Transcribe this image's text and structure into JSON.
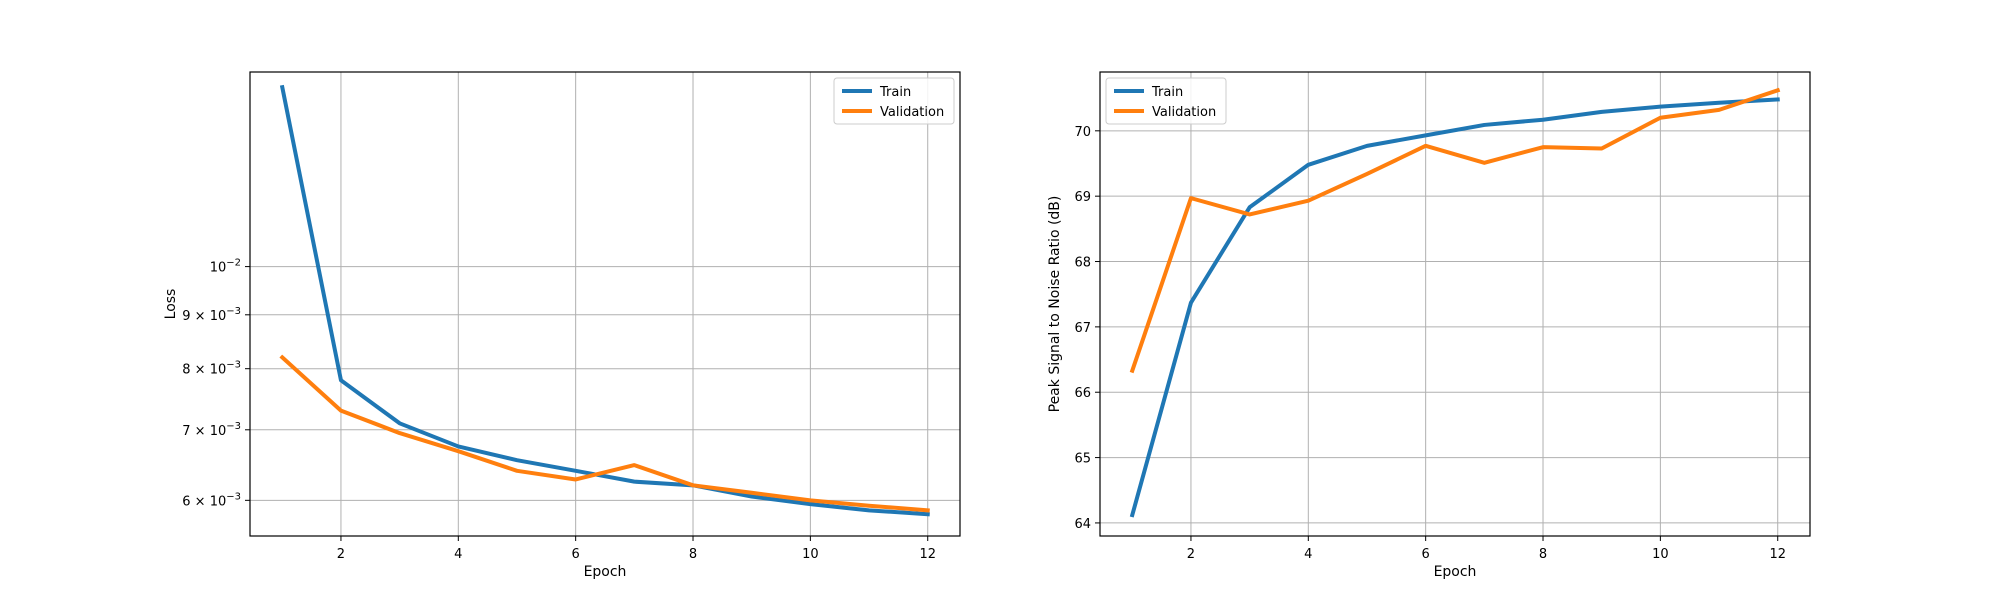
{
  "chart_data": [
    {
      "type": "line",
      "xlabel": "Epoch",
      "ylabel": "Loss",
      "yscale": "log",
      "xlim": [
        0.45,
        12.55
      ],
      "ylim": [
        0.00555,
        0.0153
      ],
      "xticks": [
        2,
        4,
        6,
        8,
        10,
        12
      ],
      "xtick_labels": [
        "2",
        "4",
        "6",
        "8",
        "10",
        "12"
      ],
      "yticks": [
        {
          "value": 0.01,
          "mantissa": "",
          "base": "10",
          "exponent": "−2"
        },
        {
          "value": 0.009,
          "mantissa": "9 × ",
          "base": "10",
          "exponent": "−3"
        },
        {
          "value": 0.008,
          "mantissa": "8 × ",
          "base": "10",
          "exponent": "−3"
        },
        {
          "value": 0.007,
          "mantissa": "7 × ",
          "base": "10",
          "exponent": "−3"
        },
        {
          "value": 0.006,
          "mantissa": "6 × ",
          "base": "10",
          "exponent": "−3"
        }
      ],
      "grid": true,
      "legend": "top-right",
      "x": [
        1,
        2,
        3,
        4,
        5,
        6,
        7,
        8,
        9,
        10,
        11,
        12
      ],
      "series": [
        {
          "name": "Train",
          "color": "#1f77b4",
          "values": [
            0.0148,
            0.0078,
            0.0071,
            0.00675,
            0.00655,
            0.0064,
            0.00625,
            0.0062,
            0.00605,
            0.00595,
            0.00587,
            0.00582
          ]
        },
        {
          "name": "Validation",
          "color": "#ff7f0e",
          "values": [
            0.0082,
            0.0073,
            0.00695,
            0.00668,
            0.0064,
            0.00628,
            0.00648,
            0.0062,
            0.0061,
            0.006,
            0.00593,
            0.00587
          ]
        }
      ]
    },
    {
      "type": "line",
      "xlabel": "Epoch",
      "ylabel": "Peak Signal to Noise Ratio (dB)",
      "yscale": "linear",
      "xlim": [
        0.45,
        12.55
      ],
      "ylim": [
        63.8,
        70.9
      ],
      "xticks": [
        2,
        4,
        6,
        8,
        10,
        12
      ],
      "xtick_labels": [
        "2",
        "4",
        "6",
        "8",
        "10",
        "12"
      ],
      "yticks": [
        {
          "value": 64,
          "label": "64"
        },
        {
          "value": 65,
          "label": "65"
        },
        {
          "value": 66,
          "label": "66"
        },
        {
          "value": 67,
          "label": "67"
        },
        {
          "value": 68,
          "label": "68"
        },
        {
          "value": 69,
          "label": "69"
        },
        {
          "value": 70,
          "label": "70"
        }
      ],
      "grid": true,
      "legend": "top-left",
      "x": [
        1,
        2,
        3,
        4,
        5,
        6,
        7,
        8,
        9,
        10,
        11,
        12
      ],
      "series": [
        {
          "name": "Train",
          "color": "#1f77b4",
          "values": [
            64.12,
            67.37,
            68.83,
            69.48,
            69.77,
            69.93,
            70.09,
            70.17,
            70.29,
            70.37,
            70.43,
            70.48
          ]
        },
        {
          "name": "Validation",
          "color": "#ff7f0e",
          "values": [
            66.33,
            68.97,
            68.72,
            68.93,
            69.34,
            69.77,
            69.51,
            69.75,
            69.73,
            70.2,
            70.32,
            70.62
          ]
        }
      ]
    }
  ]
}
